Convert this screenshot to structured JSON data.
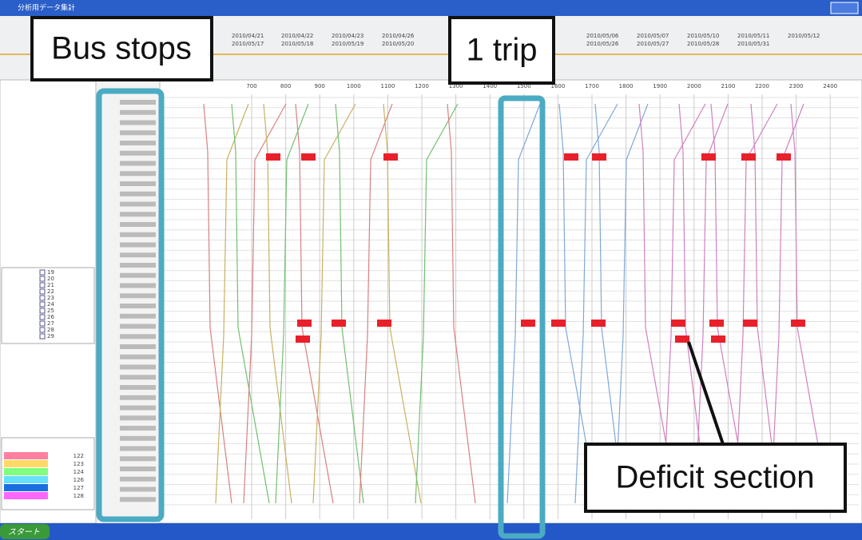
{
  "window": {
    "title": "分析用データ集計"
  },
  "dates": {
    "row1": [
      "2010/04/21",
      "2010/04/22",
      "2010/04/23",
      "2010/04/26",
      "2010/05/06",
      "2010/05/07",
      "2010/05/10",
      "2010/05/11",
      "2010/05/12"
    ],
    "row2": [
      "2010/05/17",
      "2010/05/18",
      "2010/05/19",
      "2010/05/20",
      "2010/05/26",
      "2010/05/27",
      "2010/05/28",
      "2010/05/31"
    ]
  },
  "times": [
    "700",
    "800",
    "900",
    "1000",
    "1100",
    "1200",
    "1300",
    "1400",
    "1500",
    "1600",
    "1700",
    "1800",
    "1900",
    "2000",
    "2100",
    "2200",
    "2300",
    "2400"
  ],
  "routes": [
    "19",
    "20",
    "21",
    "22",
    "23",
    "24",
    "25",
    "26",
    "27",
    "28",
    "29"
  ],
  "run_numbers": [
    "122",
    "123",
    "124",
    "126",
    "127",
    "128"
  ],
  "taskbar": {
    "start": "スタート"
  },
  "annotations": {
    "bus_stops": "Bus stops",
    "one_trip": "1 trip",
    "deficit": "Deficit section"
  }
}
